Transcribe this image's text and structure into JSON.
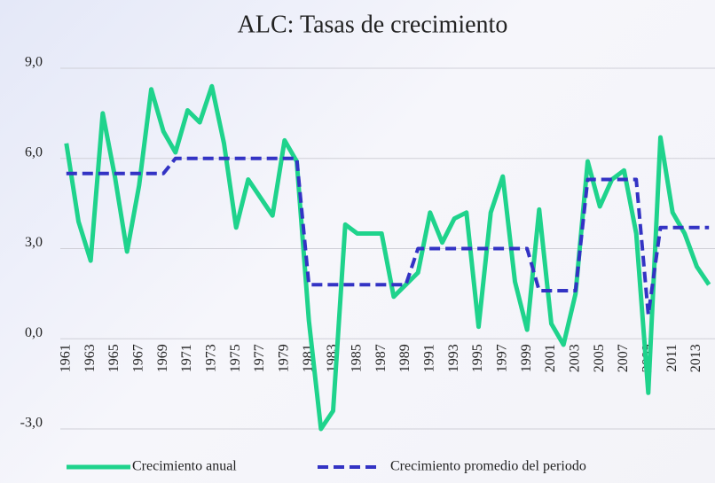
{
  "chart_data": {
    "type": "line",
    "title": "ALC: Tasas de crecimiento",
    "categories": [
      "1961",
      null,
      "1963",
      null,
      "1965",
      null,
      "1967",
      null,
      "1969",
      null,
      "1971",
      null,
      "1973",
      null,
      "1975",
      null,
      "1977",
      null,
      "1979",
      null,
      "1981",
      null,
      "1983",
      null,
      "1985",
      null,
      "1987",
      null,
      "1989",
      null,
      "1991",
      null,
      "1993",
      null,
      "1995",
      null,
      "1997",
      null,
      "1999",
      null,
      "2001",
      null,
      "2003",
      null,
      "2005",
      null,
      "2007",
      null,
      "2009",
      null,
      "2011",
      null,
      "2013",
      null
    ],
    "series": [
      {
        "name": "Crecimiento anual",
        "color": "#1fd38c",
        "dash": false,
        "values": [
          6.5,
          3.9,
          2.6,
          7.5,
          5.4,
          2.9,
          5.1,
          8.3,
          6.9,
          6.2,
          7.6,
          7.2,
          8.4,
          6.5,
          3.7,
          5.3,
          4.7,
          4.1,
          6.6,
          5.9,
          0.6,
          -3.0,
          -2.4,
          3.8,
          3.5,
          3.5,
          3.5,
          1.4,
          1.8,
          2.2,
          4.2,
          3.2,
          4.0,
          4.2,
          0.4,
          4.2,
          5.4,
          1.9,
          0.3,
          4.3,
          0.5,
          -0.2,
          1.5,
          5.9,
          4.4,
          5.3,
          5.6,
          3.5,
          -1.8,
          6.7,
          4.2,
          3.5,
          2.4,
          1.8
        ]
      },
      {
        "name": "Crecimiento promedio del periodo",
        "color": "#3333c4",
        "dash": true,
        "values": [
          5.5,
          5.5,
          5.5,
          5.5,
          5.5,
          5.5,
          5.5,
          5.5,
          5.5,
          6.0,
          6.0,
          6.0,
          6.0,
          6.0,
          6.0,
          6.0,
          6.0,
          6.0,
          6.0,
          6.0,
          1.8,
          1.8,
          1.8,
          1.8,
          1.8,
          1.8,
          1.8,
          1.8,
          1.8,
          3.0,
          3.0,
          3.0,
          3.0,
          3.0,
          3.0,
          3.0,
          3.0,
          3.0,
          3.0,
          1.6,
          1.6,
          1.6,
          1.6,
          5.3,
          5.3,
          5.3,
          5.3,
          5.3,
          0.8,
          3.7,
          3.7,
          3.7,
          3.7,
          3.7
        ]
      }
    ],
    "ylim": [
      -3,
      9
    ],
    "yticks": [
      {
        "value": -3,
        "label": "-3,0"
      },
      {
        "value": 0,
        "label": "0,0"
      },
      {
        "value": 3,
        "label": "3,0"
      },
      {
        "value": 6,
        "label": "6,0"
      },
      {
        "value": 9,
        "label": "9,0"
      }
    ],
    "grid": true,
    "legend": "bottom"
  }
}
